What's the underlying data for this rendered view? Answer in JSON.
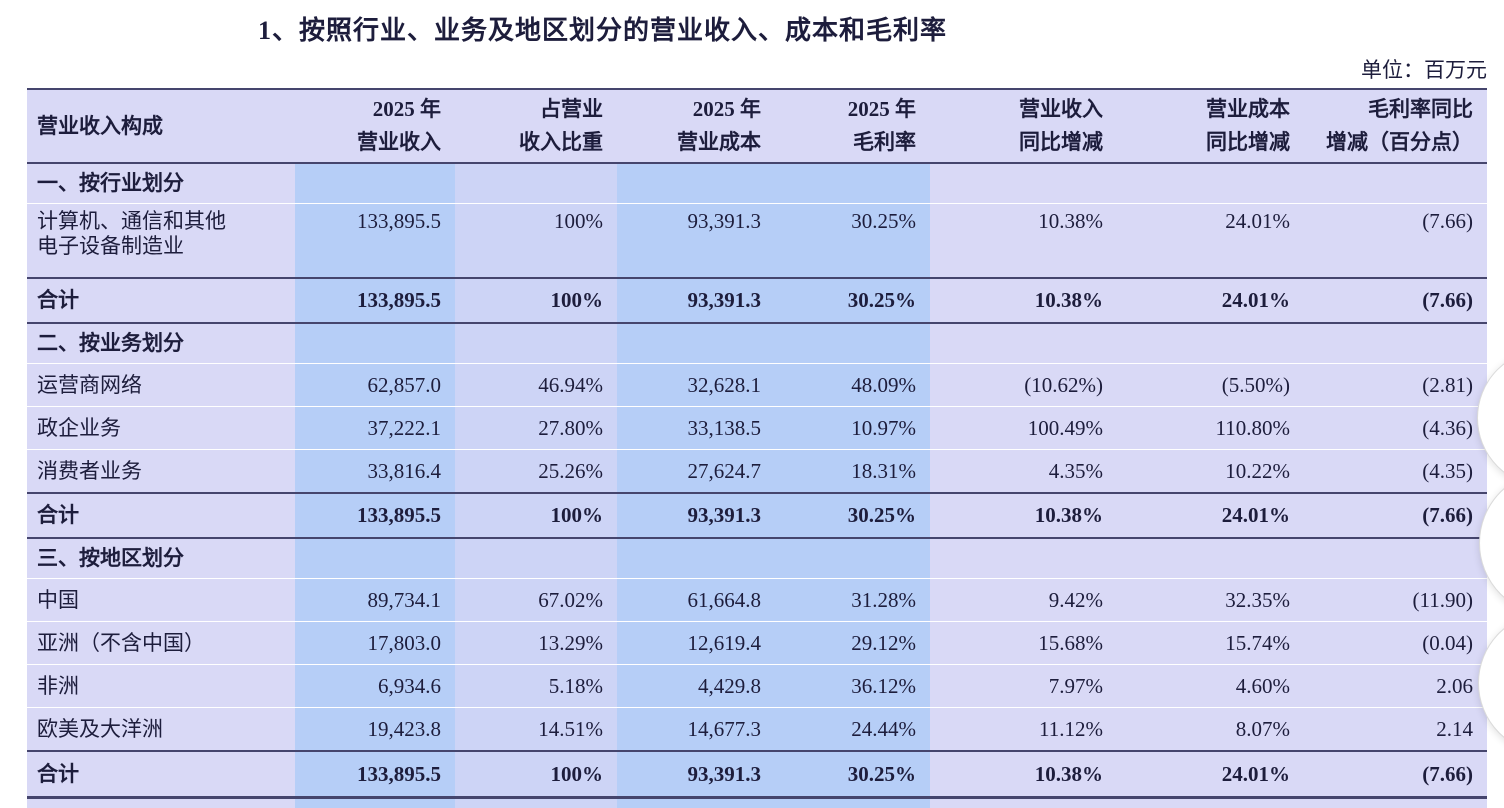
{
  "title": "1、按照行业、业务及地区划分的营业收入、成本和毛利率",
  "unit_note": "单位：百万元",
  "colors": {
    "row_base": "#d9d9f6",
    "highlight_column": "#b6cef7",
    "ratio_column": "#cdd4f6",
    "rule_line": "#45456d",
    "text": "#1d1d3c"
  },
  "table": {
    "headers": [
      [
        "营业收入构成"
      ],
      [
        "2025 年",
        "营业收入"
      ],
      [
        "占营业",
        "收入比重"
      ],
      [
        "2025 年",
        "营业成本"
      ],
      [
        "2025 年",
        "毛利率"
      ],
      [
        "营业收入",
        "同比增减"
      ],
      [
        "营业成本",
        "同比增减"
      ],
      [
        "毛利率同比",
        "增减（百分点）"
      ]
    ],
    "total_label": "合计",
    "sections": [
      {
        "name": "一、按行业划分",
        "rows": [
          {
            "label": [
              "计算机、通信和其他",
              "电子设备制造业"
            ],
            "tall": true,
            "values": [
              "133,895.5",
              "100%",
              "93,391.3",
              "30.25%",
              "10.38%",
              "24.01%",
              "(7.66)"
            ]
          }
        ],
        "total": [
          "133,895.5",
          "100%",
          "93,391.3",
          "30.25%",
          "10.38%",
          "24.01%",
          "(7.66)"
        ]
      },
      {
        "name": "二、按业务划分",
        "rows": [
          {
            "label": [
              "运营商网络"
            ],
            "values": [
              "62,857.0",
              "46.94%",
              "32,628.1",
              "48.09%",
              "(10.62%)",
              "(5.50%)",
              "(2.81)"
            ]
          },
          {
            "label": [
              "政企业务"
            ],
            "values": [
              "37,222.1",
              "27.80%",
              "33,138.5",
              "10.97%",
              "100.49%",
              "110.80%",
              "(4.36)"
            ]
          },
          {
            "label": [
              "消费者业务"
            ],
            "values": [
              "33,816.4",
              "25.26%",
              "27,624.7",
              "18.31%",
              "4.35%",
              "10.22%",
              "(4.35)"
            ]
          }
        ],
        "total": [
          "133,895.5",
          "100%",
          "93,391.3",
          "30.25%",
          "10.38%",
          "24.01%",
          "(7.66)"
        ]
      },
      {
        "name": "三、按地区划分",
        "rows": [
          {
            "label": [
              "中国"
            ],
            "values": [
              "89,734.1",
              "67.02%",
              "61,664.8",
              "31.28%",
              "9.42%",
              "32.35%",
              "(11.90)"
            ]
          },
          {
            "label": [
              "亚洲（不含中国）"
            ],
            "values": [
              "17,803.0",
              "13.29%",
              "12,619.4",
              "29.12%",
              "15.68%",
              "15.74%",
              "(0.04)"
            ]
          },
          {
            "label": [
              "非洲"
            ],
            "values": [
              "6,934.6",
              "5.18%",
              "4,429.8",
              "36.12%",
              "7.97%",
              "4.60%",
              "2.06"
            ]
          },
          {
            "label": [
              "欧美及大洋洲"
            ],
            "values": [
              "19,423.8",
              "14.51%",
              "14,677.3",
              "24.44%",
              "11.12%",
              "8.07%",
              "2.14"
            ]
          }
        ],
        "total": [
          "133,895.5",
          "100%",
          "93,391.3",
          "30.25%",
          "10.38%",
          "24.01%",
          "(7.66)"
        ]
      }
    ]
  }
}
